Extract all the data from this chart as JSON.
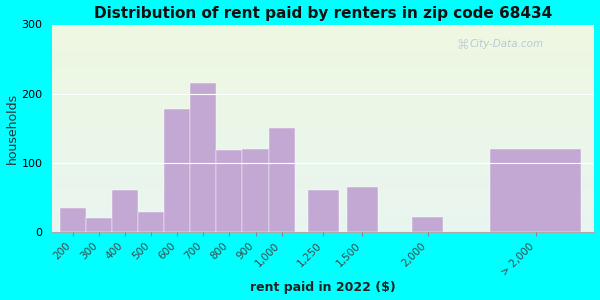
{
  "title": "Distribution of rent paid by renters in zip code 68434",
  "xlabel": "rent paid in 2022 ($)",
  "ylabel": "households",
  "background_color": "#00FFFF",
  "bar_color": "#c4a8d4",
  "categories": [
    "200",
    "300",
    "400",
    "500",
    "600",
    "700",
    "800",
    "900",
    "1,000",
    "1,250",
    "1,500",
    "2,000",
    "> 2,000"
  ],
  "values": [
    35,
    20,
    60,
    28,
    178,
    215,
    118,
    120,
    150,
    60,
    65,
    22,
    120
  ],
  "ylim": [
    0,
    300
  ],
  "yticks": [
    0,
    100,
    200,
    300
  ],
  "watermark": "City-Data.com",
  "title_fontsize": 11,
  "axis_label_fontsize": 9,
  "tick_fontsize": 7.5
}
